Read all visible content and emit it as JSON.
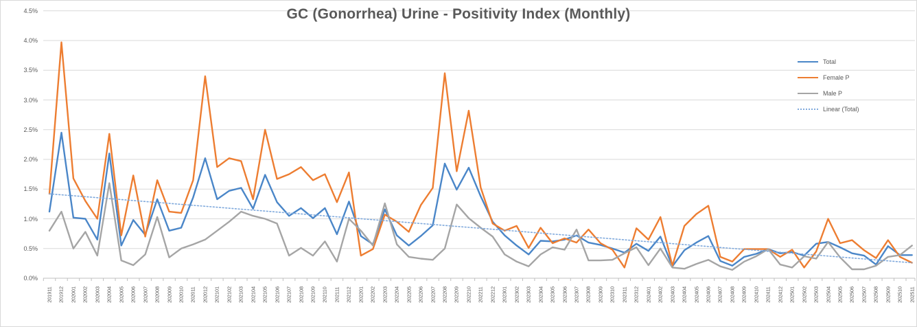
{
  "chart_data": {
    "type": "line",
    "title": "GC (Gonorrhea) Urine - Positivity Index (Monthly)",
    "ylabel": "",
    "xlabel": "",
    "unit": "percent",
    "ylim": [
      0,
      4.5
    ],
    "grid": "horizontal",
    "legend_position": "right-top",
    "y_ticks": [
      "0.0%",
      "0.5%",
      "1.0%",
      "1.5%",
      "2.0%",
      "2.5%",
      "3.0%",
      "3.5%",
      "4.0%",
      "4.5%"
    ],
    "x": [
      "201911",
      "201912",
      "202001",
      "202002",
      "202003",
      "202004",
      "202005",
      "202006",
      "202007",
      "202008",
      "202009",
      "202010",
      "202011",
      "202012",
      "202101",
      "202102",
      "202103",
      "202104",
      "202105",
      "202106",
      "202107",
      "202108",
      "202109",
      "202110",
      "202111",
      "202112",
      "202201",
      "202202",
      "202203",
      "202204",
      "202205",
      "202206",
      "202207",
      "202208",
      "202209",
      "202210",
      "202211",
      "202212",
      "202301",
      "202302",
      "202303",
      "202304",
      "202305",
      "202306",
      "202307",
      "202308",
      "202309",
      "202310",
      "202311",
      "202312",
      "202401",
      "202402",
      "202403",
      "202404",
      "202405",
      "202406",
      "202407",
      "202408",
      "202409",
      "202410",
      "202411",
      "202412",
      "202501",
      "202502",
      "202503",
      "202504",
      "202505",
      "202506",
      "202507",
      "202508",
      "202509",
      "202510",
      "202511"
    ],
    "series": [
      {
        "name": "Total",
        "color": "#4A86C8",
        "values": [
          1.12,
          2.45,
          1.02,
          1.0,
          0.65,
          2.1,
          0.55,
          0.98,
          0.73,
          1.33,
          0.8,
          0.85,
          1.36,
          2.02,
          1.33,
          1.47,
          1.52,
          1.17,
          1.74,
          1.28,
          1.05,
          1.18,
          1.01,
          1.18,
          0.74,
          1.29,
          0.71,
          0.57,
          1.16,
          0.72,
          0.55,
          0.71,
          0.89,
          1.93,
          1.49,
          1.86,
          1.38,
          0.95,
          0.72,
          0.55,
          0.4,
          0.63,
          0.62,
          0.65,
          0.72,
          0.6,
          0.56,
          0.5,
          0.43,
          0.58,
          0.46,
          0.7,
          0.2,
          0.47,
          0.6,
          0.71,
          0.29,
          0.21,
          0.36,
          0.41,
          0.49,
          0.42,
          0.44,
          0.38,
          0.58,
          0.61,
          0.52,
          0.42,
          0.38,
          0.23,
          0.54,
          0.39,
          0.39
        ]
      },
      {
        "name": "Female P",
        "color": "#ED7D31",
        "values": [
          1.42,
          3.97,
          1.68,
          1.3,
          1.0,
          2.43,
          0.72,
          1.73,
          0.7,
          1.65,
          1.12,
          1.1,
          1.65,
          3.4,
          1.87,
          2.02,
          1.97,
          1.33,
          2.5,
          1.67,
          1.75,
          1.87,
          1.65,
          1.75,
          1.28,
          1.78,
          0.38,
          0.49,
          1.07,
          0.95,
          0.78,
          1.23,
          1.52,
          3.45,
          1.8,
          2.82,
          1.53,
          0.92,
          0.8,
          0.88,
          0.51,
          0.85,
          0.59,
          0.67,
          0.6,
          0.82,
          0.59,
          0.48,
          0.18,
          0.84,
          0.65,
          1.03,
          0.21,
          0.88,
          1.08,
          1.22,
          0.36,
          0.28,
          0.49,
          0.49,
          0.49,
          0.36,
          0.48,
          0.18,
          0.45,
          1.0,
          0.59,
          0.64,
          0.47,
          0.34,
          0.64,
          0.36,
          0.26
        ]
      },
      {
        "name": "Male P",
        "color": "#A5A5A5",
        "values": [
          0.8,
          1.12,
          0.5,
          0.78,
          0.38,
          1.6,
          0.3,
          0.22,
          0.4,
          1.03,
          0.35,
          0.5,
          0.57,
          0.65,
          0.8,
          0.95,
          1.12,
          1.05,
          1.0,
          0.92,
          0.38,
          0.51,
          0.38,
          0.62,
          0.28,
          1.0,
          0.8,
          0.55,
          1.26,
          0.57,
          0.36,
          0.33,
          0.31,
          0.5,
          1.24,
          1.01,
          0.85,
          0.7,
          0.4,
          0.28,
          0.2,
          0.4,
          0.52,
          0.48,
          0.82,
          0.3,
          0.3,
          0.31,
          0.42,
          0.52,
          0.22,
          0.5,
          0.18,
          0.16,
          0.24,
          0.31,
          0.2,
          0.14,
          0.28,
          0.37,
          0.49,
          0.23,
          0.18,
          0.37,
          0.33,
          0.61,
          0.35,
          0.15,
          0.15,
          0.21,
          0.36,
          0.39,
          0.55
        ]
      }
    ],
    "trendline": {
      "name": "Linear (Total)",
      "color": "#7FA9DC",
      "style": "dotted",
      "start_value": 1.42,
      "end_value": 0.26
    }
  },
  "legend": {
    "items": [
      {
        "label": "Total",
        "color": "#4A86C8",
        "style": "solid"
      },
      {
        "label": "Female P",
        "color": "#ED7D31",
        "style": "solid"
      },
      {
        "label": "Male P",
        "color": "#A5A5A5",
        "style": "solid"
      },
      {
        "label": "Linear (Total)",
        "color": "#7FA9DC",
        "style": "dotted"
      }
    ]
  },
  "colors": {
    "gridline": "#D9D9D9",
    "axis": "#BFBFBF",
    "text": "#595959",
    "background": "#FFFFFF"
  }
}
